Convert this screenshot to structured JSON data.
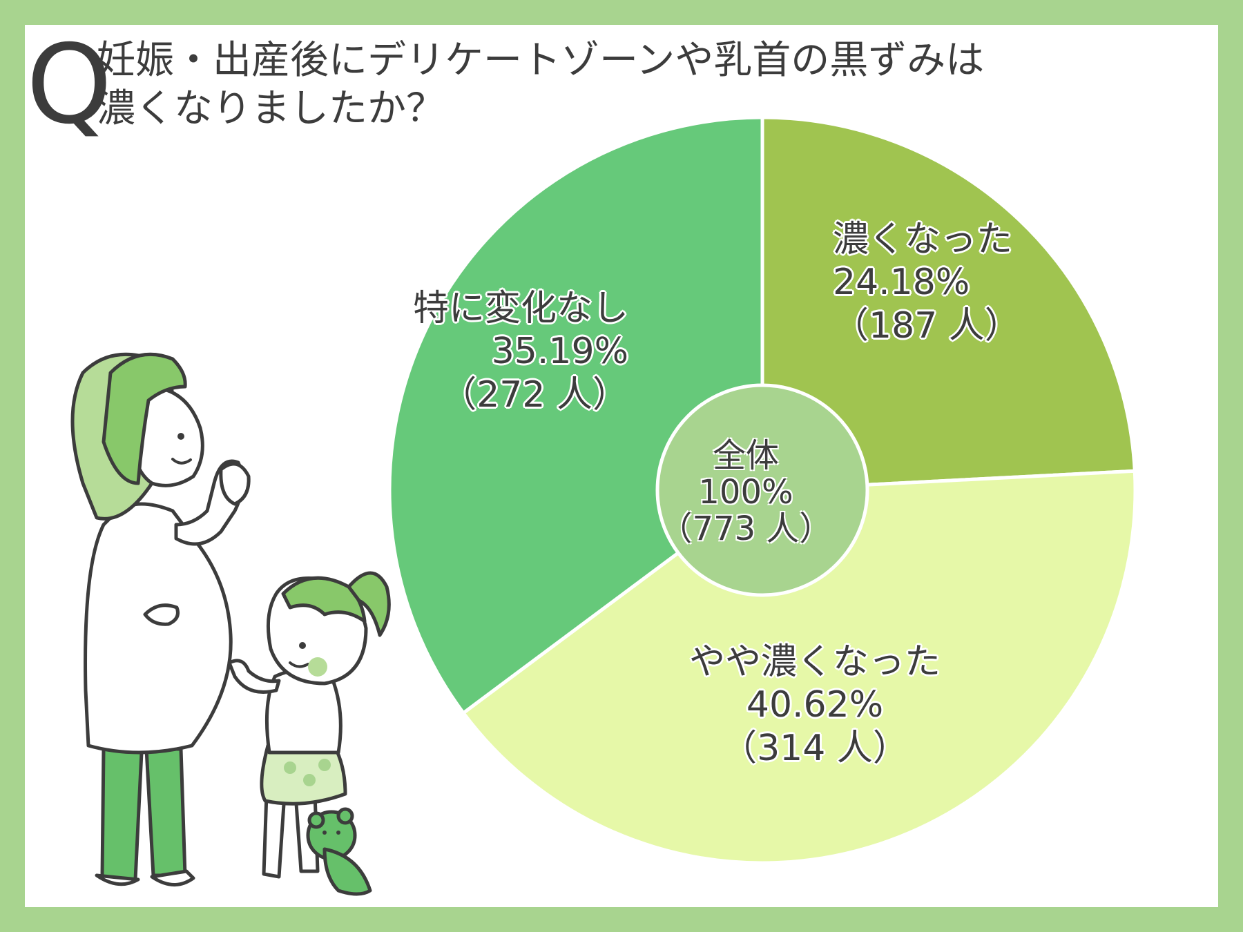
{
  "question": {
    "marker": "Q",
    "line1": "妊娠・出産後にデリケートゾーンや乳首の黒ずみは",
    "line2": "濃くなりましたか？"
  },
  "colors": {
    "border": "#a8d48f",
    "slice_koku": "#a0c450",
    "slice_yaya": "#e6f8a8",
    "slice_henka": "#66c97a",
    "center": "#a8d48f"
  },
  "center": {
    "label": "全体",
    "percent": "100%",
    "count": "（773 人）"
  },
  "chart_data": {
    "type": "pie",
    "title": "妊娠・出産後にデリケートゾーンや乳首の黒ずみは濃くなりましたか？",
    "slices": [
      {
        "label": "濃くなった",
        "value": 24.18,
        "percent_text": "24.18%",
        "count_text": "（187 人）"
      },
      {
        "label": "やや濃くなった",
        "value": 40.62,
        "percent_text": "40.62%",
        "count_text": "（314 人）"
      },
      {
        "label": "特に変化なし",
        "value": 35.19,
        "percent_text": "35.19%",
        "count_text": "（272 人）"
      }
    ]
  }
}
